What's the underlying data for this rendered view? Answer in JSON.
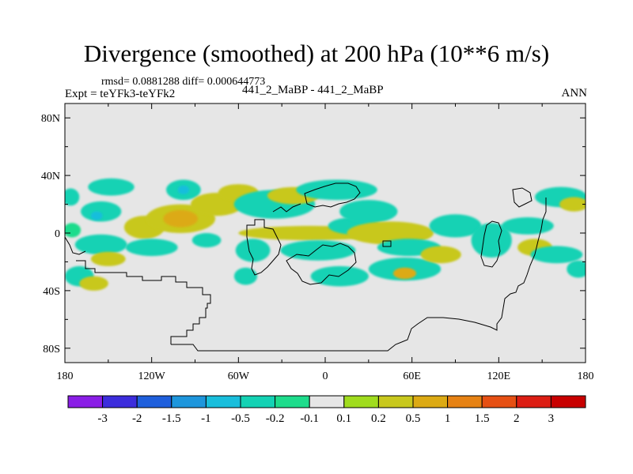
{
  "title": "Divergence (smoothed) at 200 hPa (10**6 m/s)",
  "stats": "rmsd= 0.0881288 diff= 0.000644773",
  "experiment": "Expt = teYFk3-teYFk2",
  "case": "441_2_MaBP - 441_2_MaBP",
  "season": "ANN",
  "chart_data": {
    "type": "heatmap",
    "title": "Divergence (smoothed) at 200 hPa (10**6 m/s)",
    "units": "10**6 m/s",
    "x_range": [
      -180,
      180
    ],
    "y_range": [
      -90,
      90
    ],
    "x_ticks": [
      {
        "value": -180,
        "label": "180"
      },
      {
        "value": -120,
        "label": "120W"
      },
      {
        "value": -60,
        "label": "60W"
      },
      {
        "value": 0,
        "label": "0"
      },
      {
        "value": 60,
        "label": "60E"
      },
      {
        "value": 120,
        "label": "120E"
      },
      {
        "value": 180,
        "label": "180"
      }
    ],
    "y_ticks": [
      {
        "value": 80,
        "label": "80N"
      },
      {
        "value": 40,
        "label": "40N"
      },
      {
        "value": 0,
        "label": "0"
      },
      {
        "value": -40,
        "label": "40S"
      },
      {
        "value": -80,
        "label": "80S"
      }
    ],
    "colorbar": {
      "labels": [
        "-3",
        "-2",
        "-1.5",
        "-1",
        "-0.5",
        "-0.2",
        "-0.1",
        "0.1",
        "0.2",
        "0.5",
        "1",
        "1.5",
        "2",
        "3"
      ],
      "colors": [
        "#8a1ee6",
        "#3c2ddc",
        "#1f5fdc",
        "#1e96dc",
        "#19bedc",
        "#14d2b4",
        "#1edc8c",
        "#e6e6e6",
        "#a0dc1e",
        "#c8c81e",
        "#dcaa14",
        "#e68214",
        "#e65014",
        "#dc1e14",
        "#c80000"
      ]
    },
    "blobs": [
      {
        "lon": -176,
        "lat": 25,
        "rx": 6,
        "ry": 6,
        "level": "-0.2"
      },
      {
        "lon": -175,
        "lat": 2,
        "rx": 6,
        "ry": 5,
        "level": "-0.1"
      },
      {
        "lon": -170,
        "lat": -30,
        "rx": 10,
        "ry": 7,
        "level": "-0.2"
      },
      {
        "lon": -160,
        "lat": -35,
        "rx": 10,
        "ry": 5,
        "level": "0.2"
      },
      {
        "lon": -155,
        "lat": 15,
        "rx": 14,
        "ry": 7,
        "level": "-0.2"
      },
      {
        "lon": -158,
        "lat": 12,
        "rx": 4,
        "ry": 3,
        "level": "-0.5"
      },
      {
        "lon": -155,
        "lat": -8,
        "rx": 18,
        "ry": 7,
        "level": "-0.2"
      },
      {
        "lon": -150,
        "lat": -18,
        "rx": 12,
        "ry": 5,
        "level": "0.2"
      },
      {
        "lon": -148,
        "lat": 32,
        "rx": 16,
        "ry": 6,
        "level": "-0.2"
      },
      {
        "lon": -125,
        "lat": 4,
        "rx": 14,
        "ry": 8,
        "level": "0.2"
      },
      {
        "lon": -120,
        "lat": -10,
        "rx": 18,
        "ry": 6,
        "level": "-0.2"
      },
      {
        "lon": -100,
        "lat": 10,
        "rx": 24,
        "ry": 10,
        "level": "0.2"
      },
      {
        "lon": -100,
        "lat": 10,
        "rx": 12,
        "ry": 6,
        "level": "0.5"
      },
      {
        "lon": -98,
        "lat": 30,
        "rx": 12,
        "ry": 7,
        "level": "-0.2"
      },
      {
        "lon": -98,
        "lat": 30,
        "rx": 4,
        "ry": 3,
        "level": "-0.5"
      },
      {
        "lon": -82,
        "lat": -5,
        "rx": 10,
        "ry": 5,
        "level": "-0.2"
      },
      {
        "lon": -75,
        "lat": 20,
        "rx": 18,
        "ry": 8,
        "level": "0.2"
      },
      {
        "lon": -60,
        "lat": 28,
        "rx": 14,
        "ry": 6,
        "level": "0.2"
      },
      {
        "lon": -55,
        "lat": -30,
        "rx": 8,
        "ry": 6,
        "level": "-0.2"
      },
      {
        "lon": -50,
        "lat": -12,
        "rx": 12,
        "ry": 8,
        "level": "-0.2"
      },
      {
        "lon": -35,
        "lat": 20,
        "rx": 28,
        "ry": 10,
        "level": "-0.2"
      },
      {
        "lon": -22,
        "lat": 26,
        "rx": 18,
        "ry": 6,
        "level": "0.2"
      },
      {
        "lon": -10,
        "lat": 0,
        "rx": 50,
        "ry": 5,
        "level": "0.2"
      },
      {
        "lon": -5,
        "lat": -12,
        "rx": 26,
        "ry": 7,
        "level": "-0.2"
      },
      {
        "lon": 8,
        "lat": 30,
        "rx": 28,
        "ry": 7,
        "level": "-0.2"
      },
      {
        "lon": 10,
        "lat": -30,
        "rx": 20,
        "ry": 7,
        "level": "-0.2"
      },
      {
        "lon": 20,
        "lat": 5,
        "rx": 18,
        "ry": 6,
        "level": "-0.2"
      },
      {
        "lon": 30,
        "lat": 15,
        "rx": 20,
        "ry": 8,
        "level": "-0.2"
      },
      {
        "lon": 45,
        "lat": 0,
        "rx": 30,
        "ry": 8,
        "level": "0.2"
      },
      {
        "lon": 55,
        "lat": -25,
        "rx": 25,
        "ry": 8,
        "level": "-0.2"
      },
      {
        "lon": 55,
        "lat": -28,
        "rx": 8,
        "ry": 4,
        "level": "0.5"
      },
      {
        "lon": 58,
        "lat": -10,
        "rx": 22,
        "ry": 6,
        "level": "-0.2"
      },
      {
        "lon": 80,
        "lat": -15,
        "rx": 14,
        "ry": 6,
        "level": "0.2"
      },
      {
        "lon": 90,
        "lat": 5,
        "rx": 18,
        "ry": 8,
        "level": "-0.2"
      },
      {
        "lon": 115,
        "lat": -5,
        "rx": 14,
        "ry": 12,
        "level": "-0.2"
      },
      {
        "lon": 140,
        "lat": 5,
        "rx": 18,
        "ry": 6,
        "level": "-0.2"
      },
      {
        "lon": 145,
        "lat": -10,
        "rx": 12,
        "ry": 6,
        "level": "0.2"
      },
      {
        "lon": 160,
        "lat": -15,
        "rx": 18,
        "ry": 6,
        "level": "-0.2"
      },
      {
        "lon": 163,
        "lat": 25,
        "rx": 18,
        "ry": 7,
        "level": "-0.2"
      },
      {
        "lon": 172,
        "lat": 20,
        "rx": 10,
        "ry": 5,
        "level": "0.2"
      },
      {
        "lon": 175,
        "lat": -25,
        "rx": 8,
        "ry": 6,
        "level": "-0.2"
      }
    ]
  }
}
